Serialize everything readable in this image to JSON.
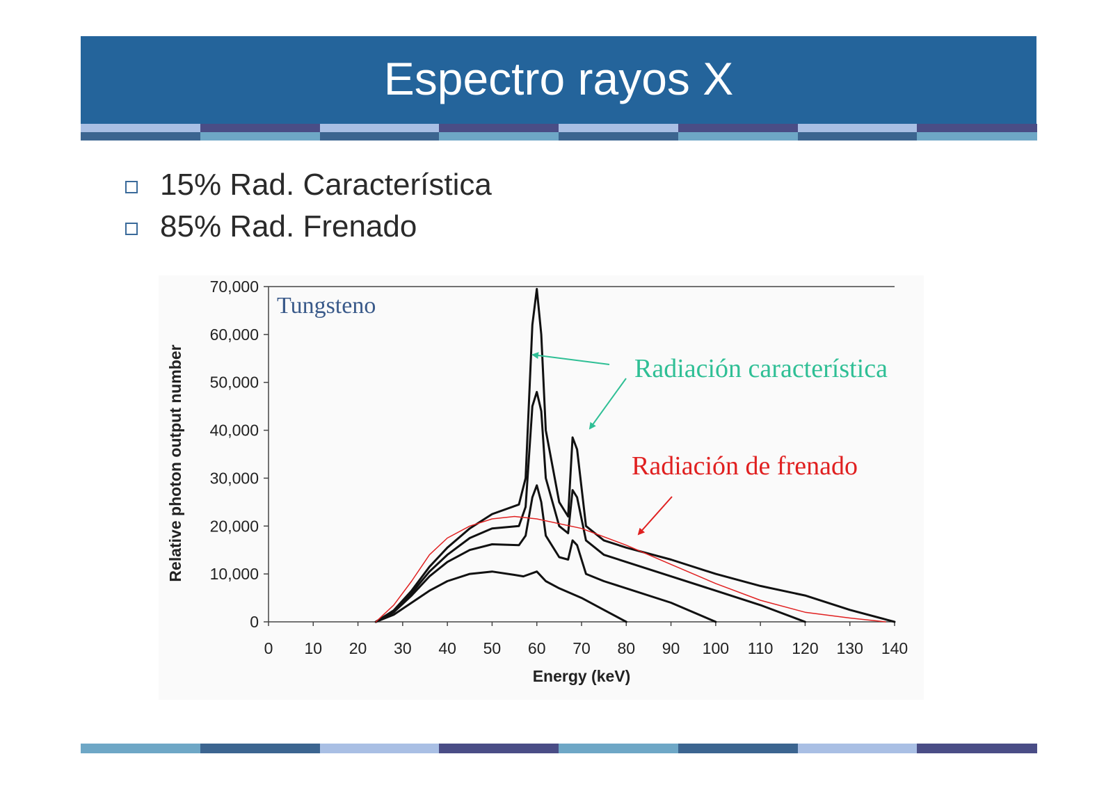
{
  "slide": {
    "title": "Espectro rayos X",
    "bullets": [
      {
        "text": "15% Rad. Característica"
      },
      {
        "text": "85% Rad. Frenado"
      }
    ],
    "colors": {
      "header": "#24649b",
      "strip": [
        "#a9bfe4",
        "#4a4d86",
        "#6ea7c6",
        "#3c6590"
      ]
    }
  },
  "chart_data": {
    "type": "line",
    "xlabel": "Energy (keV)",
    "ylabel": "Relative photon output number",
    "xlim": [
      0,
      140
    ],
    "ylim": [
      0,
      70000
    ],
    "xticks": [
      "0",
      "10",
      "20",
      "30",
      "40",
      "50",
      "60",
      "70",
      "80",
      "90",
      "100",
      "110",
      "120",
      "130",
      "140"
    ],
    "yticks": [
      "0",
      "10,000",
      "20,000",
      "30,000",
      "40,000",
      "50,000",
      "60,000",
      "70,000"
    ],
    "annotations": [
      {
        "text": "Tungsteno",
        "color": "#3a5a8a"
      },
      {
        "text": "Radiación característica",
        "color": "#2fbf95"
      },
      {
        "text": "Radiación de frenado",
        "color": "#e02020"
      }
    ],
    "series": [
      {
        "color": "#111111",
        "points": [
          [
            24,
            0
          ],
          [
            28,
            1500
          ],
          [
            32,
            4000
          ],
          [
            36,
            6500
          ],
          [
            40,
            8500
          ],
          [
            45,
            10000
          ],
          [
            50,
            10500
          ],
          [
            55,
            9800
          ],
          [
            57,
            9500
          ],
          [
            60,
            10500
          ],
          [
            62,
            8500
          ],
          [
            65,
            7000
          ],
          [
            70,
            5000
          ],
          [
            75,
            2500
          ],
          [
            80,
            0
          ]
        ]
      },
      {
        "color": "#111111",
        "points": [
          [
            24,
            0
          ],
          [
            28,
            2000
          ],
          [
            32,
            5500
          ],
          [
            36,
            9500
          ],
          [
            40,
            12500
          ],
          [
            45,
            15000
          ],
          [
            50,
            16200
          ],
          [
            56,
            16000
          ],
          [
            57.5,
            18000
          ],
          [
            59,
            26000
          ],
          [
            60,
            28500
          ],
          [
            61,
            25000
          ],
          [
            62,
            18000
          ],
          [
            65,
            13500
          ],
          [
            67,
            13000
          ],
          [
            68,
            17000
          ],
          [
            69,
            16000
          ],
          [
            71,
            10000
          ],
          [
            75,
            8500
          ],
          [
            80,
            7000
          ],
          [
            90,
            4000
          ],
          [
            100,
            0
          ]
        ]
      },
      {
        "color": "#111111",
        "points": [
          [
            24,
            0
          ],
          [
            28,
            2300
          ],
          [
            32,
            6000
          ],
          [
            36,
            10500
          ],
          [
            40,
            14000
          ],
          [
            45,
            17500
          ],
          [
            50,
            19500
          ],
          [
            56,
            20000
          ],
          [
            57.5,
            24000
          ],
          [
            59,
            45000
          ],
          [
            60,
            48000
          ],
          [
            61,
            44000
          ],
          [
            62,
            30000
          ],
          [
            65,
            20000
          ],
          [
            67,
            18500
          ],
          [
            68,
            27500
          ],
          [
            69,
            26000
          ],
          [
            71,
            17000
          ],
          [
            75,
            14000
          ],
          [
            80,
            12500
          ],
          [
            90,
            9500
          ],
          [
            100,
            6500
          ],
          [
            110,
            3500
          ],
          [
            120,
            0
          ]
        ]
      },
      {
        "color": "#111111",
        "points": [
          [
            24,
            0
          ],
          [
            28,
            2400
          ],
          [
            32,
            6500
          ],
          [
            36,
            11500
          ],
          [
            40,
            15500
          ],
          [
            45,
            19500
          ],
          [
            50,
            22500
          ],
          [
            56,
            24500
          ],
          [
            57.5,
            30000
          ],
          [
            59,
            62000
          ],
          [
            60,
            69500
          ],
          [
            61,
            60000
          ],
          [
            62,
            40000
          ],
          [
            65,
            25000
          ],
          [
            67,
            22000
          ],
          [
            68,
            38500
          ],
          [
            69,
            36000
          ],
          [
            71,
            20000
          ],
          [
            75,
            17000
          ],
          [
            80,
            15500
          ],
          [
            90,
            13000
          ],
          [
            100,
            10000
          ],
          [
            110,
            7500
          ],
          [
            120,
            5500
          ],
          [
            130,
            2500
          ],
          [
            140,
            0
          ]
        ]
      },
      {
        "color": "#e02020",
        "width": 1.5,
        "points": [
          [
            24,
            0
          ],
          [
            28,
            3500
          ],
          [
            32,
            8500
          ],
          [
            36,
            14000
          ],
          [
            40,
            17500
          ],
          [
            45,
            20000
          ],
          [
            50,
            21500
          ],
          [
            55,
            22000
          ],
          [
            60,
            21500
          ],
          [
            70,
            19500
          ],
          [
            80,
            16000
          ],
          [
            90,
            12000
          ],
          [
            100,
            8000
          ],
          [
            110,
            4500
          ],
          [
            120,
            2000
          ],
          [
            130,
            800
          ],
          [
            138,
            0
          ]
        ]
      }
    ]
  }
}
